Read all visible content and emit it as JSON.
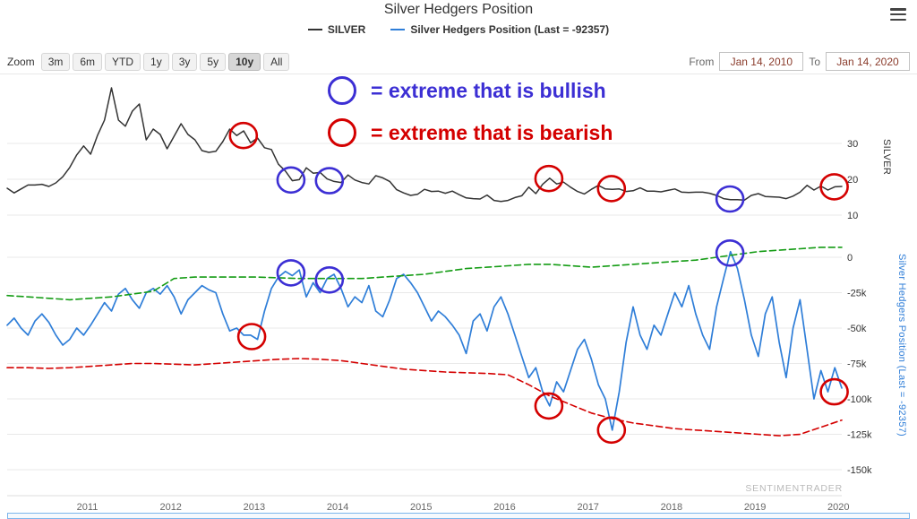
{
  "header": {
    "title": "Silver Hedgers Position"
  },
  "legend": {
    "items": [
      {
        "label": "SILVER",
        "color": "#333333"
      },
      {
        "label": "Silver Hedgers Position (Last = -92357)",
        "color": "#2f7ed8"
      }
    ]
  },
  "toolbar": {
    "zoom_label": "Zoom",
    "buttons": [
      "3m",
      "6m",
      "YTD",
      "1y",
      "3y",
      "5y",
      "10y",
      "All"
    ],
    "active_button": "10y",
    "from_label": "From",
    "from_value": "Jan 14, 2010",
    "to_label": "To",
    "to_value": "Jan 14, 2020"
  },
  "key": {
    "bullish": {
      "text": "= extreme that is bullish",
      "color": "#3c2fd4"
    },
    "bearish": {
      "text": "= extreme that is bearish",
      "color": "#d40000"
    }
  },
  "axes": {
    "price_title": "SILVER",
    "hedgers_title": "Silver Hedgers Position (Last = -92357)",
    "x_tick_labels": [
      "2011",
      "2012",
      "2013",
      "2014",
      "2015",
      "2016",
      "2017",
      "2018",
      "2019",
      "2020"
    ]
  },
  "watermark": "SENTIMENTRADER",
  "chart_data": {
    "type": "line",
    "title": "Silver Hedgers Position",
    "x_range": [
      2010.04,
      2020.04
    ],
    "x_ticks": [
      2011,
      2012,
      2013,
      2014,
      2015,
      2016,
      2017,
      2018,
      2019,
      2020
    ],
    "legend_position": "top",
    "grid": true,
    "panels": [
      {
        "id": "price",
        "axis_title": "SILVER",
        "tick_values": [
          30,
          20,
          10
        ],
        "tick_labels": [
          "30",
          "20",
          "10"
        ],
        "ylim": [
          8,
          48
        ],
        "series": [
          {
            "name": "SILVER",
            "color": "#333333",
            "width": 1.5,
            "start": 2010.04,
            "step": 0.083333,
            "values": [
              17.5,
              16.2,
              17.3,
              18.4,
              18.4,
              18.6,
              18.0,
              19.0,
              20.7,
              23.3,
              26.8,
              29.3,
              27.0,
              32.3,
              36.5,
              45.5,
              36.5,
              34.8,
              39.0,
              41.0,
              31.0,
              34.0,
              32.5,
              28.5,
              32.0,
              35.5,
              32.5,
              31.0,
              28.0,
              27.5,
              27.8,
              30.5,
              34.0,
              32.2,
              33.5,
              30.2,
              31.5,
              28.8,
              28.3,
              24.2,
              22.3,
              19.6,
              19.9,
              23.2,
              21.7,
              21.9,
              20.1,
              19.4,
              19.1,
              21.2,
              19.8,
              19.1,
              18.7,
              21.0,
              20.4,
              19.4,
              17.1,
              16.2,
              15.5,
              15.8,
              17.2,
              16.6,
              16.7,
              16.1,
              16.7,
              15.7,
              14.8,
              14.6,
              14.5,
              15.6,
              14.1,
              13.8,
              14.1,
              14.9,
              15.4,
              17.8,
              16.0,
              18.6,
              20.3,
              18.7,
              19.2,
              17.8,
              16.6,
              15.9,
              17.2,
              18.3,
              17.3,
              17.2,
              17.3,
              16.6,
              16.8,
              17.6,
              16.7,
              16.7,
              16.5,
              16.9,
              17.3,
              16.4,
              16.3,
              16.4,
              16.4,
              16.1,
              15.5,
              14.6,
              14.3,
              14.3,
              14.2,
              15.5,
              16.0,
              15.2,
              15.1,
              15.0,
              14.6,
              15.3,
              16.4,
              18.3,
              17.0,
              18.1,
              17.0,
              17.9,
              18.0
            ]
          }
        ]
      },
      {
        "id": "hedgers",
        "axis_title": "Silver Hedgers Position",
        "last_value": -92357,
        "tick_values": [
          0,
          -25000,
          -50000,
          -75000,
          -100000,
          -125000,
          -150000
        ],
        "tick_labels": [
          "0",
          "-25k",
          "-50k",
          "-75k",
          "-100k",
          "-125k",
          "-150k"
        ],
        "ylim": [
          -155000,
          15000
        ],
        "series": [
          {
            "name": "Silver Hedgers Position",
            "color": "#2f7ed8",
            "width": 1.7,
            "start": 2010.04,
            "step": 0.083333,
            "values": [
              -48000,
              -43000,
              -50000,
              -55000,
              -45000,
              -40000,
              -46000,
              -55000,
              -62000,
              -58000,
              -50000,
              -55000,
              -48000,
              -40000,
              -32000,
              -38000,
              -26000,
              -22000,
              -30000,
              -36000,
              -25000,
              -22000,
              -26000,
              -20000,
              -28000,
              -40000,
              -30000,
              -25000,
              -20000,
              -23000,
              -25000,
              -40000,
              -52000,
              -50000,
              -55000,
              -55000,
              -58000,
              -38000,
              -22000,
              -14000,
              -10000,
              -13000,
              -9000,
              -28000,
              -18000,
              -25000,
              -15000,
              -12000,
              -22000,
              -35000,
              -28000,
              -32000,
              -20000,
              -38000,
              -42000,
              -30000,
              -15000,
              -12000,
              -18000,
              -25000,
              -35000,
              -45000,
              -38000,
              -42000,
              -48000,
              -55000,
              -68000,
              -45000,
              -40000,
              -52000,
              -35000,
              -28000,
              -40000,
              -55000,
              -70000,
              -85000,
              -78000,
              -95000,
              -105000,
              -88000,
              -95000,
              -80000,
              -65000,
              -58000,
              -72000,
              -90000,
              -100000,
              -122000,
              -95000,
              -60000,
              -35000,
              -55000,
              -65000,
              -48000,
              -55000,
              -40000,
              -25000,
              -35000,
              -20000,
              -40000,
              -55000,
              -65000,
              -35000,
              -15000,
              4000,
              -8000,
              -30000,
              -55000,
              -70000,
              -40000,
              -28000,
              -60000,
              -85000,
              -50000,
              -30000,
              -65000,
              -100000,
              -80000,
              -95000,
              -78000,
              -92357
            ]
          },
          {
            "name": "Bullish extreme threshold",
            "color": "#149c14",
            "width": 1.6,
            "dash": "7,4",
            "start": 2010.04,
            "step": 0.25,
            "values": [
              -27000,
              -28000,
              -29000,
              -30000,
              -29000,
              -28000,
              -26000,
              -24000,
              -15000,
              -14000,
              -14000,
              -14000,
              -14000,
              -14500,
              -15000,
              -15000,
              -15000,
              -15000,
              -14000,
              -13000,
              -12000,
              -10000,
              -8000,
              -7000,
              -6000,
              -5000,
              -5000,
              -6000,
              -7000,
              -6000,
              -5000,
              -4000,
              -3000,
              -2000,
              0,
              2000,
              4000,
              5000,
              6000,
              7000,
              7000
            ]
          },
          {
            "name": "Bearish extreme threshold",
            "color": "#d40000",
            "width": 1.6,
            "dash": "7,4",
            "start": 2010.04,
            "step": 0.25,
            "values": [
              -78000,
              -78000,
              -78500,
              -78000,
              -77000,
              -76000,
              -75000,
              -75000,
              -75500,
              -76000,
              -75000,
              -74000,
              -73000,
              -72000,
              -71500,
              -72000,
              -73000,
              -75000,
              -77000,
              -79000,
              -80000,
              -81000,
              -81500,
              -82000,
              -83000,
              -90000,
              -98000,
              -104000,
              -110000,
              -114000,
              -117000,
              -119000,
              -121000,
              -122000,
              -123000,
              -124000,
              -125000,
              -126000,
              -125000,
              -120000,
              -115000
            ]
          }
        ]
      }
    ],
    "annotation_circles": [
      {
        "panel": "price",
        "t": 2012.87,
        "v": 32.2,
        "type": "bearish"
      },
      {
        "panel": "price",
        "t": 2013.44,
        "v": 19.8,
        "type": "bullish"
      },
      {
        "panel": "price",
        "t": 2013.9,
        "v": 19.6,
        "type": "bullish"
      },
      {
        "panel": "price",
        "t": 2016.53,
        "v": 20.2,
        "type": "bearish"
      },
      {
        "panel": "price",
        "t": 2017.28,
        "v": 17.4,
        "type": "bearish"
      },
      {
        "panel": "price",
        "t": 2018.7,
        "v": 14.5,
        "type": "bullish"
      },
      {
        "panel": "price",
        "t": 2019.95,
        "v": 17.9,
        "type": "bearish"
      },
      {
        "panel": "hedgers",
        "t": 2012.97,
        "v": -56000,
        "type": "bearish"
      },
      {
        "panel": "hedgers",
        "t": 2013.44,
        "v": -11000,
        "type": "bullish"
      },
      {
        "panel": "hedgers",
        "t": 2013.9,
        "v": -16000,
        "type": "bullish"
      },
      {
        "panel": "hedgers",
        "t": 2016.53,
        "v": -105000,
        "type": "bearish"
      },
      {
        "panel": "hedgers",
        "t": 2017.28,
        "v": -122000,
        "type": "bearish"
      },
      {
        "panel": "hedgers",
        "t": 2018.7,
        "v": 3000,
        "type": "bullish"
      },
      {
        "panel": "hedgers",
        "t": 2019.95,
        "v": -95000,
        "type": "bearish"
      }
    ]
  }
}
